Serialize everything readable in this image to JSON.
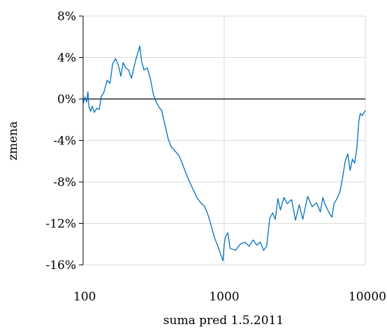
{
  "chart_data": {
    "type": "line",
    "title": "",
    "xlabel": "suma pred 1.5.2011",
    "ylabel": "zmena",
    "x_scale": "log",
    "xlim": [
      100,
      10000
    ],
    "ylim": [
      -16,
      8
    ],
    "x_ticks": [
      100,
      1000,
      10000
    ],
    "x_tick_labels": [
      "100",
      "1000",
      "10000"
    ],
    "y_ticks": [
      8,
      4,
      0,
      -4,
      -8,
      -12,
      -16
    ],
    "y_tick_labels": [
      "8%",
      "4%",
      "0%",
      "-4%",
      "-8%",
      "-12%",
      "-16%"
    ],
    "grid": true,
    "legend": "none",
    "zero_line_color": "#000000",
    "grid_color": "#d9d9d9",
    "series": [
      {
        "color": "#0070c0",
        "x": [
          100,
          103,
          106,
          108,
          110,
          113,
          116,
          120,
          125,
          130,
          135,
          140,
          148,
          155,
          162,
          170,
          178,
          185,
          192,
          200,
          210,
          220,
          235,
          245,
          252,
          260,
          270,
          285,
          300,
          315,
          330,
          345,
          360,
          380,
          400,
          420,
          440,
          460,
          480,
          500,
          530,
          560,
          600,
          640,
          680,
          720,
          760,
          800,
          850,
          900,
          950,
          980,
          1000,
          1020,
          1060,
          1100,
          1200,
          1300,
          1400,
          1500,
          1600,
          1700,
          1800,
          1900,
          2000,
          2100,
          2200,
          2300,
          2400,
          2500,
          2650,
          2800,
          3000,
          3200,
          3400,
          3600,
          3900,
          4200,
          4500,
          4800,
          5000,
          5200,
          5500,
          5800,
          6000,
          6300,
          6600,
          6900,
          7200,
          7500,
          7800,
          8100,
          8400,
          8700,
          9000,
          9200,
          9500,
          9800,
          10000
        ],
        "y": [
          -0.5,
          0.2,
          -0.3,
          0.7,
          -0.8,
          -1.2,
          -0.7,
          -1.3,
          -0.9,
          -1.0,
          0.3,
          0.6,
          1.8,
          1.5,
          3.4,
          3.9,
          3.2,
          2.2,
          3.5,
          3.0,
          2.8,
          2.0,
          3.7,
          4.5,
          5.1,
          3.6,
          2.8,
          3.0,
          1.9,
          0.4,
          -0.3,
          -0.8,
          -1.1,
          -2.5,
          -3.8,
          -4.6,
          -4.9,
          -5.2,
          -5.5,
          -6.1,
          -7.0,
          -7.8,
          -8.7,
          -9.5,
          -10.0,
          -10.3,
          -11.0,
          -12.0,
          -13.3,
          -14.2,
          -15.1,
          -15.6,
          -14.0,
          -13.3,
          -12.9,
          -14.4,
          -14.6,
          -14.0,
          -13.8,
          -14.2,
          -13.6,
          -14.1,
          -13.8,
          -14.6,
          -14.2,
          -11.5,
          -11.0,
          -11.6,
          -9.6,
          -10.7,
          -9.5,
          -10.1,
          -9.7,
          -11.7,
          -10.2,
          -11.6,
          -9.4,
          -10.4,
          -10.0,
          -10.9,
          -9.5,
          -10.2,
          -10.9,
          -11.4,
          -10.1,
          -9.6,
          -9.0,
          -7.6,
          -6.0,
          -5.3,
          -6.9,
          -5.8,
          -6.2,
          -4.8,
          -2.1,
          -1.4,
          -1.6,
          -1.3,
          -1.1
        ]
      }
    ]
  }
}
